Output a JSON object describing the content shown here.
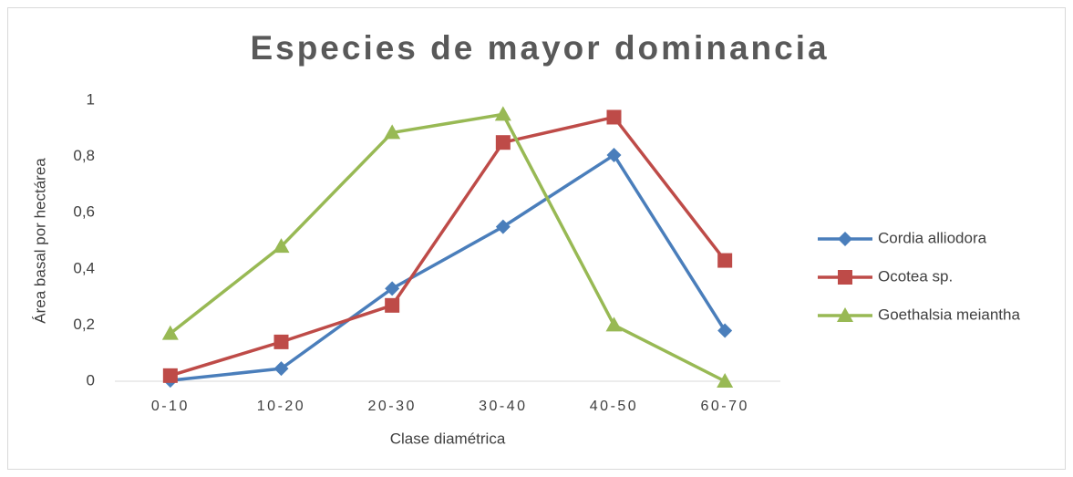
{
  "chart_data": {
    "type": "line",
    "title": "Especies de mayor dominancia",
    "x_label": "Clase diamétrica",
    "y_label": "Área basal por hectárea",
    "categories": [
      "0-10",
      "10-20",
      "20-30",
      "30-40",
      "40-50",
      "60-70"
    ],
    "series": [
      {
        "name": "Cordia alliodora",
        "color": "#4a7ebb",
        "marker": "diamond",
        "values": [
          0.003,
          0.045,
          0.33,
          0.55,
          0.805,
          0.18
        ]
      },
      {
        "name": "Ocotea sp.",
        "color": "#be4b48",
        "marker": "square",
        "values": [
          0.02,
          0.14,
          0.27,
          0.85,
          0.94,
          0.43
        ]
      },
      {
        "name": "Goethalsia meiantha",
        "color": "#98b954",
        "marker": "triangle",
        "values": [
          0.17,
          0.48,
          0.885,
          0.95,
          0.2,
          0
        ]
      }
    ],
    "ylim": [
      0,
      1
    ],
    "yticks": [
      0,
      {
        "value": 0.2,
        "label": "0,2"
      },
      {
        "value": 0.4,
        "label": "0,4"
      },
      {
        "value": 0.6,
        "label": "0,6"
      },
      {
        "value": 0.8,
        "label": "0,8"
      },
      1
    ],
    "grid": false,
    "legend": "right"
  }
}
